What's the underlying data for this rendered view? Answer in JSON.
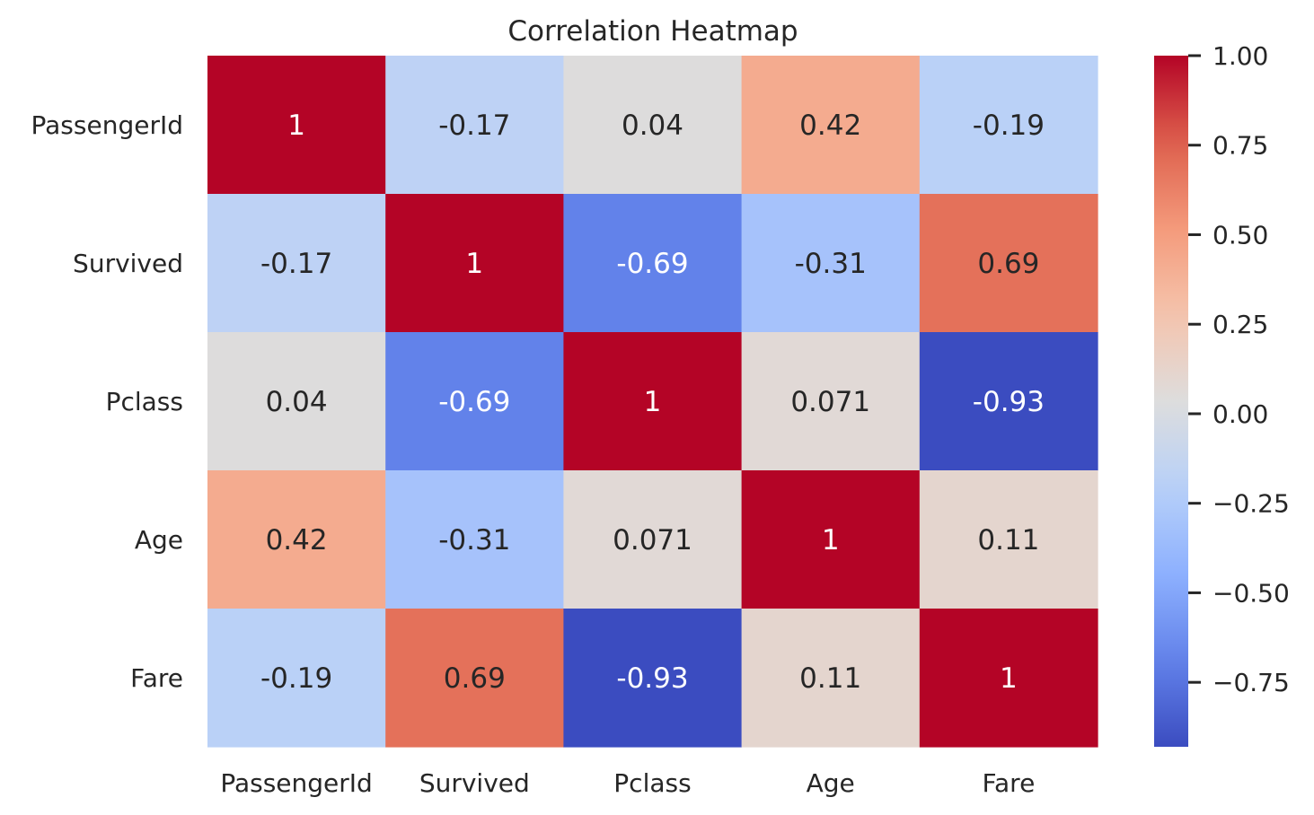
{
  "chart_data": {
    "type": "heatmap",
    "title": "Correlation Heatmap",
    "x_categories": [
      "PassengerId",
      "Survived",
      "Pclass",
      "Age",
      "Fare"
    ],
    "y_categories": [
      "PassengerId",
      "Survived",
      "Pclass",
      "Age",
      "Fare"
    ],
    "values": [
      [
        1,
        -0.17,
        0.04,
        0.42,
        -0.19
      ],
      [
        -0.17,
        1,
        -0.69,
        -0.31,
        0.69
      ],
      [
        0.04,
        -0.69,
        1,
        0.071,
        -0.93
      ],
      [
        0.42,
        -0.31,
        0.071,
        1,
        0.11
      ],
      [
        -0.19,
        0.69,
        -0.93,
        0.11,
        1
      ]
    ],
    "annotations": [
      [
        "1",
        "-0.17",
        "0.04",
        "0.42",
        "-0.19"
      ],
      [
        "-0.17",
        "1",
        "-0.69",
        "-0.31",
        "0.69"
      ],
      [
        "0.04",
        "-0.69",
        "1",
        "0.071",
        "-0.93"
      ],
      [
        "0.42",
        "-0.31",
        "0.071",
        "1",
        "0.11"
      ],
      [
        "-0.19",
        "0.69",
        "-0.93",
        "0.11",
        "1"
      ]
    ],
    "colormap": "coolwarm",
    "colorbar": {
      "range": [
        -0.93,
        1.0
      ],
      "ticks": [
        1.0,
        0.75,
        0.5,
        0.25,
        0.0,
        -0.25,
        -0.5,
        -0.75
      ],
      "tick_labels": [
        "1.00",
        "0.75",
        "0.50",
        "0.25",
        "0.00",
        "−0.25",
        "−0.50",
        "−0.75"
      ]
    },
    "xlabel": "",
    "ylabel": "",
    "grid": false,
    "legend": "colorbar-right"
  }
}
